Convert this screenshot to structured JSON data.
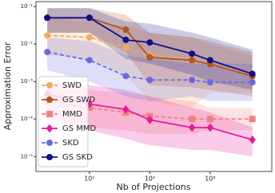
{
  "chart_data": {
    "type": "line",
    "x_label": "Nb of Projections",
    "y_label": "Approximation Error",
    "x": [
      2,
      10,
      40,
      100,
      500,
      1000,
      5000
    ],
    "xlim": [
      1.3,
      10500
    ],
    "ylim": [
      4e-06,
      0.135
    ],
    "log_x": true,
    "log_y": true,
    "xticks": [
      {
        "value": 10,
        "label": "10¹"
      },
      {
        "value": 100,
        "label": "10²"
      },
      {
        "value": 1000,
        "label": "10³"
      }
    ],
    "yticks": [
      {
        "value": 0.1,
        "label": "10⁻¹"
      },
      {
        "value": 0.01,
        "label": "10⁻²"
      },
      {
        "value": 0.001,
        "label": "10⁻³"
      },
      {
        "value": 0.0001,
        "label": "10⁻⁴"
      },
      {
        "value": 1e-05,
        "label": "10⁻⁵"
      }
    ],
    "legend": "lower left",
    "series": [
      {
        "name": "SWD",
        "color": "#f5a85c",
        "marker": "circle",
        "dashed": true,
        "values": [
          0.017,
          0.015,
          0.008,
          0.005,
          0.004,
          0.003,
          0.0015
        ],
        "lower": [
          0.005,
          0.004,
          0.0015,
          0.0003,
          0.0002,
          0.0005,
          0.0005
        ],
        "upper": [
          0.05,
          0.04,
          0.03,
          0.02,
          0.015,
          0.01,
          0.005
        ]
      },
      {
        "name": "GS SWD",
        "color": "#b5541c",
        "marker": "pentagon",
        "dashed": false,
        "values": [
          0.05,
          0.05,
          0.024,
          0.0044,
          0.0037,
          0.0029,
          0.0014
        ],
        "lower": [
          0.02,
          0.02,
          0.006,
          0.0008,
          0.0007,
          0.0006,
          0.0004
        ],
        "upper": [
          0.09,
          0.09,
          0.06,
          0.02,
          0.015,
          0.012,
          0.006
        ]
      },
      {
        "name": "MMD",
        "color": "#f08080",
        "marker": "square",
        "dashed": true,
        "values": [
          0.0003,
          0.0002,
          0.00015,
          0.00012,
          0.0001,
          0.0001,
          0.0001
        ],
        "lower": [
          0.0001,
          6e-05,
          5e-05,
          4e-05,
          4e-05,
          5e-05,
          5e-05
        ],
        "upper": [
          0.0008,
          0.0006,
          0.0005,
          0.0004,
          0.0003,
          0.0002,
          0.0002
        ]
      },
      {
        "name": "GS MMD",
        "color": "#e6199a",
        "marker": "diamond",
        "dashed": false,
        "values": [
          0.00046,
          0.00025,
          0.00018,
          9.5e-05,
          5.9e-05,
          5.9e-05,
          2.8e-05
        ],
        "lower": [
          0.0001,
          5e-05,
          3e-05,
          2e-05,
          1.5e-05,
          1.5e-05,
          1e-05
        ],
        "upper": [
          0.001,
          0.0008,
          0.0006,
          0.0004,
          0.0002,
          0.00015,
          6e-05
        ]
      },
      {
        "name": "SKD",
        "color": "#6a6ae0",
        "marker": "circle",
        "dashed": true,
        "values": [
          0.0061,
          0.0037,
          0.0014,
          0.0011,
          0.0011,
          0.00095,
          0.00095
        ],
        "lower": [
          0.002,
          0.001,
          0.0004,
          0.0003,
          0.0004,
          0.0003,
          0.0003
        ],
        "upper": [
          0.015,
          0.012,
          0.005,
          0.004,
          0.003,
          0.003,
          0.003
        ]
      },
      {
        "name": "GS SKD",
        "color": "#10108a",
        "marker": "circle",
        "dashed": false,
        "values": [
          0.05,
          0.05,
          0.0129,
          0.011,
          0.0055,
          0.0037,
          0.0016
        ],
        "lower": [
          0.02,
          0.02,
          0.004,
          0.003,
          0.0015,
          0.001,
          0.0006
        ],
        "upper": [
          0.09,
          0.09,
          0.04,
          0.035,
          0.02,
          0.015,
          0.007
        ]
      }
    ]
  }
}
